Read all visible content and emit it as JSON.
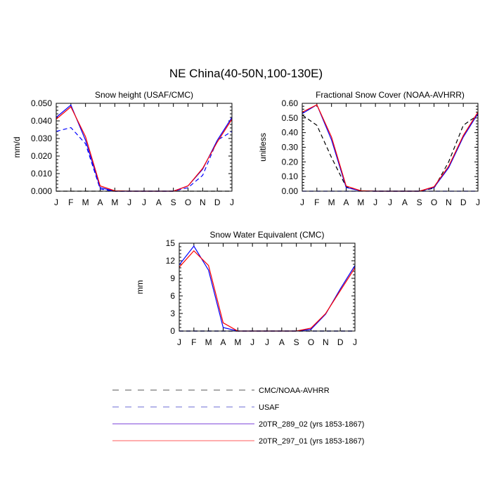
{
  "figure_title": "NE China(40-50N,100-130E)",
  "legend": [
    {
      "label": "CMC/NOAA-AVHRR",
      "color": "#000000",
      "style": "dashed"
    },
    {
      "label": "USAF",
      "color": "#0000ff",
      "style": "dashed"
    },
    {
      "label": "20TR_289_02 (yrs 1853-1867)",
      "color": "#0000ff",
      "style": "solid"
    },
    {
      "label": "20TR_297_01 (yrs 1853-1867)",
      "color": "#ff0000",
      "style": "solid"
    }
  ],
  "chart_data": [
    {
      "type": "line",
      "title": "Snow height (USAF/CMC)",
      "xlabel": "",
      "ylabel": "mm/d",
      "categories": [
        "J",
        "F",
        "M",
        "A",
        "M",
        "J",
        "J",
        "A",
        "S",
        "O",
        "N",
        "D",
        "J"
      ],
      "ylim": [
        0,
        0.05
      ],
      "yticks": [
        "0.000",
        "0.010",
        "0.020",
        "0.030",
        "0.040",
        "0.050"
      ],
      "series": [
        {
          "name": "CMC/NOAA-AVHRR",
          "color": "#000000",
          "dash": true,
          "values": [
            0,
            0,
            0,
            0,
            0,
            0,
            0,
            0,
            0,
            0,
            0,
            0,
            0
          ]
        },
        {
          "name": "USAF",
          "color": "#0000ff",
          "dash": true,
          "values": [
            0.034,
            0.0362,
            0.027,
            0.0012,
            0,
            0,
            0,
            0,
            0,
            0.002,
            0.009,
            0.029,
            0.034
          ]
        },
        {
          "name": "20TR_289_02 (yrs 1853-1867)",
          "color": "#0000ff",
          "dash": false,
          "values": [
            0.042,
            0.049,
            0.029,
            0.002,
            0,
            0,
            0,
            0,
            0,
            0.003,
            0.0125,
            0.029,
            0.042
          ]
        },
        {
          "name": "20TR_297_01 (yrs 1853-1867)",
          "color": "#ff0000",
          "dash": false,
          "values": [
            0.041,
            0.048,
            0.031,
            0.003,
            0.0002,
            0,
            0,
            0,
            0,
            0.003,
            0.013,
            0.028,
            0.041
          ]
        }
      ]
    },
    {
      "type": "line",
      "title": "Fractional Snow Cover (NOAA-AVHRR)",
      "xlabel": "",
      "ylabel": "unitless",
      "categories": [
        "J",
        "F",
        "M",
        "A",
        "M",
        "J",
        "J",
        "A",
        "S",
        "O",
        "N",
        "D",
        "J"
      ],
      "ylim": [
        0,
        0.6
      ],
      "yticks": [
        "0.00",
        "0.10",
        "0.20",
        "0.30",
        "0.40",
        "0.50",
        "0.60"
      ],
      "series": [
        {
          "name": "CMC/NOAA-AVHRR",
          "color": "#000000",
          "dash": true,
          "values": [
            0.52,
            0.45,
            0.23,
            0.03,
            0.002,
            0,
            0,
            0,
            0,
            0.02,
            0.2,
            0.45,
            0.52
          ]
        },
        {
          "name": "USAF",
          "color": "#0000ff",
          "dash": true,
          "values": [
            0,
            0,
            0,
            0,
            0,
            0,
            0,
            0,
            0,
            0,
            0,
            0,
            0
          ]
        },
        {
          "name": "20TR_289_02 (yrs 1853-1867)",
          "color": "#0000ff",
          "dash": false,
          "values": [
            0.53,
            0.59,
            0.35,
            0.025,
            0.002,
            0,
            0,
            0,
            0,
            0.025,
            0.16,
            0.37,
            0.53
          ]
        },
        {
          "name": "20TR_297_01 (yrs 1853-1867)",
          "color": "#ff0000",
          "dash": false,
          "values": [
            0.54,
            0.59,
            0.37,
            0.035,
            0.003,
            0,
            0,
            0,
            0,
            0.03,
            0.17,
            0.38,
            0.54
          ]
        }
      ]
    },
    {
      "type": "line",
      "title": "Snow Water Equivalent (CMC)",
      "xlabel": "",
      "ylabel": "mm",
      "categories": [
        "J",
        "F",
        "M",
        "A",
        "M",
        "J",
        "J",
        "A",
        "S",
        "O",
        "N",
        "D",
        "J"
      ],
      "ylim": [
        0,
        15
      ],
      "yticks": [
        "0",
        "3",
        "6",
        "9",
        "12",
        "15"
      ],
      "series": [
        {
          "name": "CMC/NOAA-AVHRR",
          "color": "#000000",
          "dash": true,
          "values": [
            0,
            0,
            0,
            0,
            0,
            0,
            0,
            0,
            0,
            0,
            0,
            0,
            0
          ]
        },
        {
          "name": "USAF",
          "color": "#0000ff",
          "dash": true,
          "values": [
            0,
            0,
            0,
            0,
            0,
            0,
            0,
            0,
            0,
            0,
            0,
            0,
            0
          ]
        },
        {
          "name": "20TR_289_02 (yrs 1853-1867)",
          "color": "#0000ff",
          "dash": false,
          "values": [
            11.3,
            14.5,
            10.4,
            0.6,
            0,
            0,
            0,
            0,
            0,
            0.3,
            2.9,
            7.2,
            11.2
          ]
        },
        {
          "name": "20TR_297_01 (yrs 1853-1867)",
          "color": "#ff0000",
          "dash": false,
          "values": [
            10.9,
            13.7,
            11.2,
            1.4,
            0,
            0,
            0,
            0,
            0,
            0.5,
            3.0,
            6.9,
            10.8
          ]
        }
      ]
    }
  ]
}
